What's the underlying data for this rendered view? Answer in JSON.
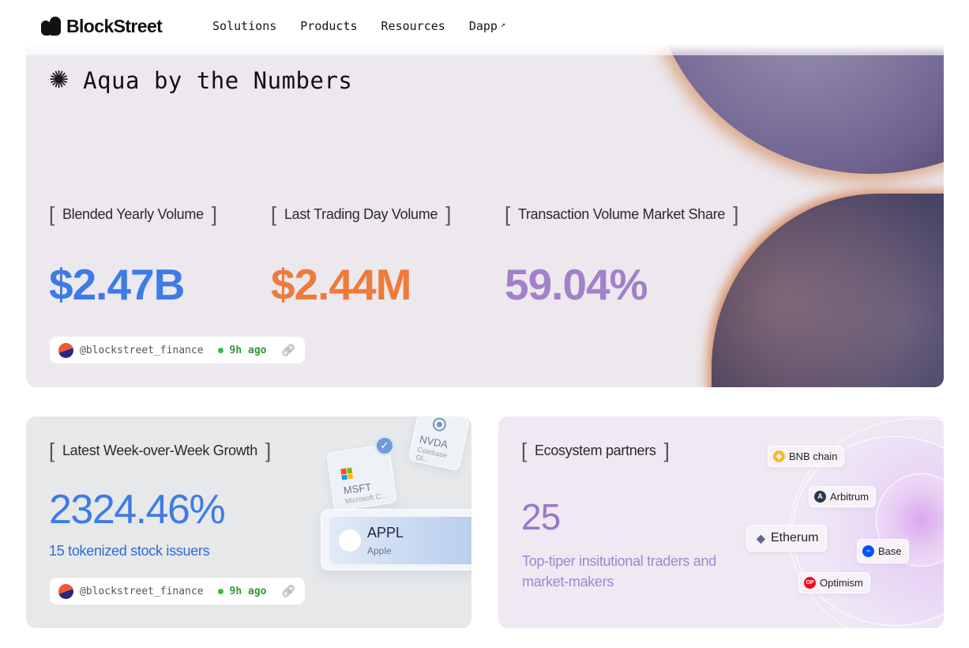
{
  "header": {
    "brand": "BlockStreet",
    "nav": [
      {
        "label": "Solutions"
      },
      {
        "label": "Products"
      },
      {
        "label": "Resources"
      },
      {
        "label": "Dapp"
      }
    ]
  },
  "hero": {
    "title": "Aqua by the Numbers",
    "stats": [
      {
        "label": "Blended Yearly Volume",
        "value": "$2.47B",
        "color": "#3d7be6"
      },
      {
        "label": "Last Trading Day Volume",
        "value": "$2.44M",
        "color": "#ee7a3b"
      },
      {
        "label": "Transaction Volume Market Share",
        "value": "59.04%",
        "color": "#a281c8"
      }
    ],
    "source": {
      "handle": "@blockstreet_finance",
      "time": "9h ago"
    }
  },
  "growth_card": {
    "label": "Latest Week-over-Week Growth",
    "value": "2324.46%",
    "subtitle": "15 tokenized stock issuers",
    "source": {
      "handle": "@blockstreet_finance",
      "time": "9h ago"
    },
    "stocks": [
      {
        "ticker": "MSFT",
        "name": "Microsoft C..."
      },
      {
        "ticker": "NVDA",
        "name": "Coinbase Gl..."
      },
      {
        "ticker": "APPL",
        "name": "Apple"
      }
    ]
  },
  "partners_card": {
    "label": "Ecosystem partners",
    "value": "25",
    "subtitle": "Top-tiper insitutional traders and market-makers",
    "chains": [
      {
        "label": "BNB chain",
        "icon": "bnb-icon",
        "color": "#f3ba2f"
      },
      {
        "label": "Arbitrum",
        "icon": "arbitrum-icon",
        "color": "#2d374b"
      },
      {
        "label": "Etherum",
        "icon": "ethereum-icon",
        "color": "#62688f"
      },
      {
        "label": "Base",
        "icon": "base-icon",
        "color": "#0052ff"
      },
      {
        "label": "Optimism",
        "icon": "optimism-icon",
        "color": "#ff0420"
      }
    ]
  }
}
